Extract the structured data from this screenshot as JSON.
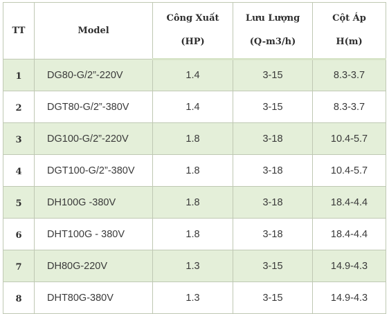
{
  "table": {
    "headers": {
      "tt": "TT",
      "model": "Model",
      "power_line1": "Công Xuất",
      "power_line2": "(HP)",
      "flow_line1": "Lưu Lượng",
      "flow_line2": "(Q-m3/h)",
      "head_line1": "Cột Áp",
      "head_line2": "H(m)"
    },
    "rows": [
      {
        "tt": "1",
        "model": "DG80-G/2”-220V",
        "power": "1.4",
        "flow": "3-15",
        "head": "8.3-3.7"
      },
      {
        "tt": "2",
        "model": "DGT80-G/2”-380V",
        "power": "1.4",
        "flow": "3-15",
        "head": "8.3-3.7"
      },
      {
        "tt": "3",
        "model": "DG100-G/2”-220V",
        "power": "1.8",
        "flow": "3-18",
        "head": "10.4-5.7"
      },
      {
        "tt": "4",
        "model": "DGT100-G/2”-380V",
        "power": "1.8",
        "flow": "3-18",
        "head": "10.4-5.7"
      },
      {
        "tt": "5",
        "model": "DH100G -380V",
        "power": "1.8",
        "flow": "3-18",
        "head": "18.4-4.4"
      },
      {
        "tt": "6",
        "model": "DHT100G - 380V",
        "power": "1.8",
        "flow": "3-18",
        "head": "18.4-4.4"
      },
      {
        "tt": "7",
        "model": "DH80G-220V",
        "power": "1.3",
        "flow": "3-15",
        "head": "14.9-4.3"
      },
      {
        "tt": "8",
        "model": "DHT80G-380V",
        "power": "1.3",
        "flow": "3-15",
        "head": "14.9-4.3"
      }
    ]
  },
  "colors": {
    "row_band": "#e4efd9",
    "border": "#bfc8b3",
    "header_accent": "#d7e4c7"
  }
}
